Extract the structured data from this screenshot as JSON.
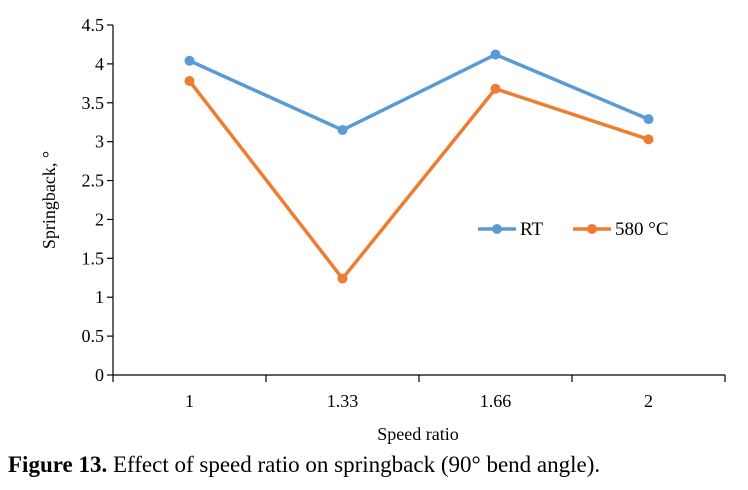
{
  "chart_data": {
    "type": "line",
    "categories": [
      "1",
      "1.33",
      "1.66",
      "2"
    ],
    "series": [
      {
        "name": "RT",
        "values": [
          4.04,
          3.15,
          4.12,
          3.29
        ],
        "color": "#5b9bd5"
      },
      {
        "name": "580 °C",
        "values": [
          3.78,
          1.24,
          3.68,
          3.03
        ],
        "color": "#ed7d31"
      }
    ],
    "xlabel": "Speed ratio",
    "ylabel": "Springback, °",
    "ylim": [
      0,
      4.5
    ],
    "yticks": [
      "0",
      "0.5",
      "1",
      "1.5",
      "2",
      "2.5",
      "3",
      "3.5",
      "4",
      "4.5"
    ],
    "grid": false,
    "legend_position": "right"
  },
  "caption": {
    "label": "Figure 13.",
    "text": "Effect of speed ratio on springback (90° bend angle)."
  }
}
